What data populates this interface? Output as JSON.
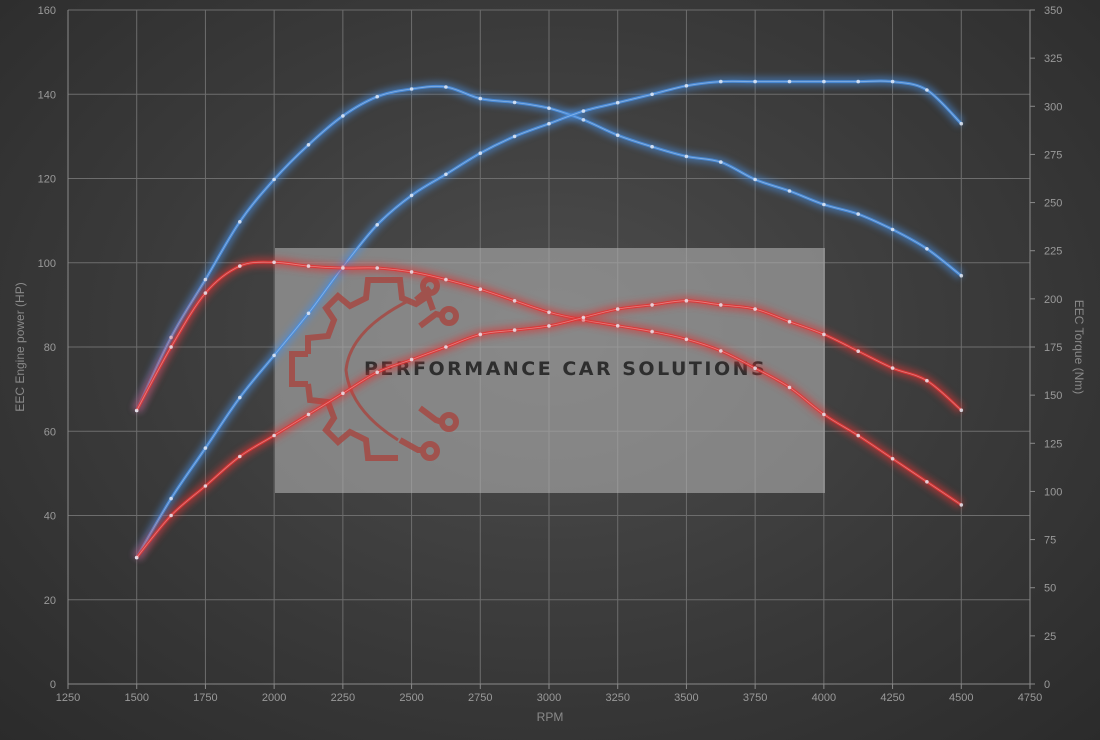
{
  "chart_data": {
    "type": "line",
    "xlabel": "RPM",
    "ylabel_left": "EEC Engine power (HP)",
    "ylabel_right": "EEC Torque (Nm)",
    "x_range": [
      1250,
      4750
    ],
    "x_ticks": [
      1250,
      1500,
      1750,
      2000,
      2250,
      2500,
      2750,
      3000,
      3250,
      3500,
      3750,
      4000,
      4250,
      4500,
      4750
    ],
    "y_left_range": [
      0,
      160
    ],
    "y_left_ticks": [
      0,
      20,
      40,
      60,
      80,
      100,
      120,
      140,
      160
    ],
    "y_right_range": [
      0,
      350
    ],
    "y_right_ticks": [
      0,
      25,
      50,
      75,
      100,
      125,
      150,
      175,
      200,
      225,
      250,
      275,
      300,
      325,
      350
    ],
    "grid": true,
    "series": [
      {
        "axis": "right",
        "color": "#4a8fe0",
        "x": [
          1500,
          1625,
          1750,
          1875,
          2000,
          2125,
          2250,
          2375,
          2500,
          2625,
          2750,
          2875,
          3000,
          3125,
          3250,
          3375,
          3500,
          3625,
          3750,
          3875,
          4000,
          4125,
          4250,
          4375,
          4500
        ],
        "values": [
          142,
          180,
          210,
          240,
          262,
          280,
          295,
          305,
          309,
          310,
          304,
          302,
          299,
          293,
          285,
          279,
          274,
          271,
          262,
          256,
          249,
          244,
          236,
          226,
          212
        ]
      },
      {
        "axis": "left",
        "color": "#4a8fe0",
        "x": [
          1500,
          1625,
          1750,
          1875,
          2000,
          2125,
          2250,
          2375,
          2500,
          2625,
          2750,
          2875,
          3000,
          3125,
          3250,
          3375,
          3500,
          3625,
          3750,
          3875,
          4000,
          4125,
          4250,
          4375,
          4500
        ],
        "values": [
          30,
          44,
          56,
          68,
          78,
          88,
          99,
          109,
          116,
          121,
          126,
          130,
          133,
          136,
          138,
          140,
          142,
          143,
          143,
          143,
          143,
          143,
          143,
          141,
          133
        ]
      },
      {
        "axis": "right",
        "color": "#e03535",
        "x": [
          1500,
          1625,
          1750,
          1875,
          2000,
          2125,
          2250,
          2375,
          2500,
          2625,
          2750,
          2875,
          3000,
          3125,
          3250,
          3375,
          3500,
          3625,
          3750,
          3875,
          4000,
          4125,
          4250,
          4375,
          4500
        ],
        "values": [
          142,
          175,
          203,
          217,
          219,
          217,
          216,
          216,
          214,
          210,
          205,
          199,
          193,
          189,
          186,
          183,
          179,
          173,
          164,
          154,
          140,
          129,
          117,
          105,
          93
        ]
      },
      {
        "axis": "left",
        "color": "#e03535",
        "x": [
          1500,
          1625,
          1750,
          1875,
          2000,
          2125,
          2250,
          2375,
          2500,
          2625,
          2750,
          2875,
          3000,
          3125,
          3250,
          3375,
          3500,
          3625,
          3750,
          3875,
          4000,
          4125,
          4250,
          4375,
          4500
        ],
        "values": [
          30,
          40,
          47,
          54,
          59,
          64,
          69,
          74,
          77,
          80,
          83,
          84,
          85,
          87,
          89,
          90,
          91,
          90,
          89,
          86,
          83,
          79,
          75,
          72,
          65
        ]
      }
    ]
  },
  "watermark": {
    "text": "PERFORMANCE CAR SOLUTIONS",
    "logo": "gear-circuit-logo"
  }
}
